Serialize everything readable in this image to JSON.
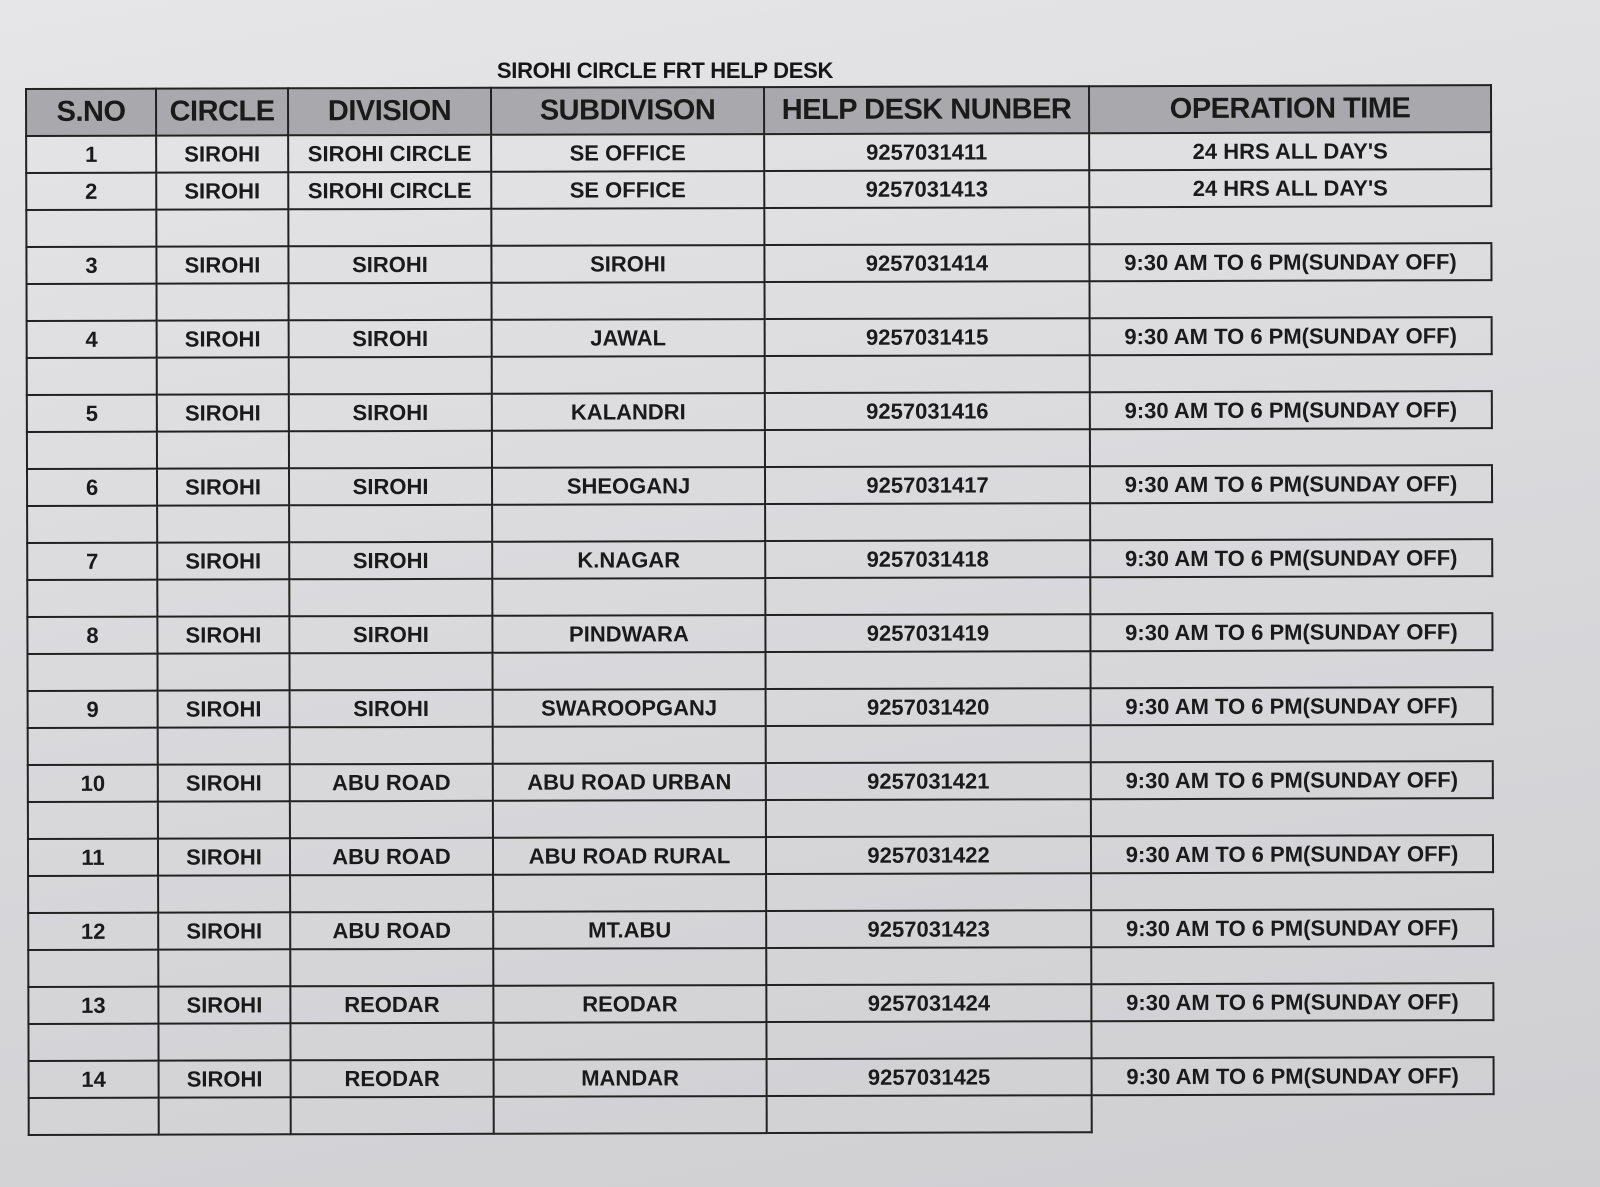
{
  "title": "SIROHI CIRCLE FRT HELP DESK",
  "columns": [
    "S.NO",
    "CIRCLE",
    "DIVISION",
    "SUBDIVISON",
    "HELP DESK NUNBER",
    "OPERATION TIME"
  ],
  "rows": [
    [
      "1",
      "SIROHI",
      "SIROHI CIRCLE",
      "SE OFFICE",
      "9257031411",
      "24 HRS ALL DAY'S"
    ],
    [
      "2",
      "SIROHI",
      "SIROHI CIRCLE",
      "SE OFFICE",
      "9257031413",
      "24 HRS ALL DAY'S"
    ],
    [
      "3",
      "SIROHI",
      "SIROHI",
      "SIROHI",
      "9257031414",
      "9:30 AM TO 6 PM(SUNDAY OFF)"
    ],
    [
      "4",
      "SIROHI",
      "SIROHI",
      "JAWAL",
      "9257031415",
      "9:30 AM TO 6 PM(SUNDAY OFF)"
    ],
    [
      "5",
      "SIROHI",
      "SIROHI",
      "KALANDRI",
      "9257031416",
      "9:30 AM TO 6 PM(SUNDAY OFF)"
    ],
    [
      "6",
      "SIROHI",
      "SIROHI",
      "SHEOGANJ",
      "9257031417",
      "9:30 AM TO 6 PM(SUNDAY OFF)"
    ],
    [
      "7",
      "SIROHI",
      "SIROHI",
      "K.NAGAR",
      "9257031418",
      "9:30 AM TO 6 PM(SUNDAY OFF)"
    ],
    [
      "8",
      "SIROHI",
      "SIROHI",
      "PINDWARA",
      "9257031419",
      "9:30 AM TO 6 PM(SUNDAY OFF)"
    ],
    [
      "9",
      "SIROHI",
      "SIROHI",
      "SWAROOPGANJ",
      "9257031420",
      "9:30 AM TO 6 PM(SUNDAY OFF)"
    ],
    [
      "10",
      "SIROHI",
      "ABU ROAD",
      "ABU ROAD URBAN",
      "9257031421",
      "9:30 AM TO 6 PM(SUNDAY OFF)"
    ],
    [
      "11",
      "SIROHI",
      "ABU ROAD",
      "ABU ROAD RURAL",
      "9257031422",
      "9:30 AM TO 6 PM(SUNDAY OFF)"
    ],
    [
      "12",
      "SIROHI",
      "ABU ROAD",
      "MT.ABU",
      "9257031423",
      "9:30 AM TO 6 PM(SUNDAY OFF)"
    ],
    [
      "13",
      "SIROHI",
      "REODAR",
      "REODAR",
      "9257031424",
      "9:30 AM TO 6 PM(SUNDAY OFF)"
    ],
    [
      "14",
      "SIROHI",
      "REODAR",
      "MANDAR",
      "9257031425",
      "9:30 AM TO 6 PM(SUNDAY OFF)"
    ]
  ]
}
